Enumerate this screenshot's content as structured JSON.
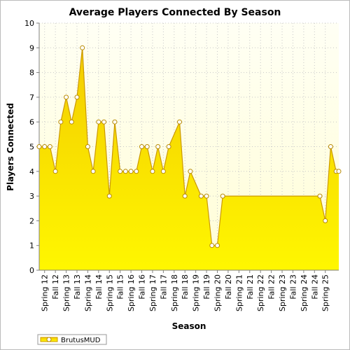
{
  "chart_data": {
    "type": "area",
    "title": "Average Players Connected By Season",
    "xlabel": "Season",
    "ylabel": "Players Connected",
    "ylim": [
      0,
      10
    ],
    "yticks": [
      0,
      1,
      2,
      3,
      4,
      5,
      6,
      7,
      8,
      9,
      10
    ],
    "grid": true,
    "legend_position": "bottom-left",
    "x_tick_labels": [
      "Spring 12",
      "Fall 12",
      "Spring 13",
      "Fall 13",
      "Spring 14",
      "Fall 14",
      "Spring 15",
      "Fall 15",
      "Spring 16",
      "Fall 16",
      "Spring 17",
      "Fall 17",
      "Spring 18",
      "Fall 18",
      "Spring 19",
      "Fall 19",
      "Spring 20",
      "Fall 20",
      "Spring 21",
      "Fall 21",
      "Spring 22",
      "Fall 22",
      "Spring 23",
      "Fall 23",
      "Spring 24",
      "Fall 24",
      "Spring 25"
    ],
    "x_index_max": 55.5,
    "series": [
      {
        "name": "BrutusMUD",
        "points": [
          {
            "x": 0,
            "y": 5,
            "marker": true
          },
          {
            "x": 1,
            "y": 5,
            "marker": true
          },
          {
            "x": 2,
            "y": 5,
            "marker": true
          },
          {
            "x": 3,
            "y": 4,
            "marker": true
          },
          {
            "x": 4,
            "y": 6,
            "marker": true
          },
          {
            "x": 5,
            "y": 7,
            "marker": true
          },
          {
            "x": 6,
            "y": 6,
            "marker": true
          },
          {
            "x": 7,
            "y": 7,
            "marker": true
          },
          {
            "x": 8,
            "y": 9,
            "marker": true
          },
          {
            "x": 9,
            "y": 5,
            "marker": true
          },
          {
            "x": 10,
            "y": 4,
            "marker": true
          },
          {
            "x": 11,
            "y": 6,
            "marker": true
          },
          {
            "x": 12,
            "y": 6,
            "marker": true
          },
          {
            "x": 13,
            "y": 3,
            "marker": true
          },
          {
            "x": 14,
            "y": 6,
            "marker": true
          },
          {
            "x": 15,
            "y": 4,
            "marker": true
          },
          {
            "x": 16,
            "y": 4,
            "marker": true
          },
          {
            "x": 17,
            "y": 4,
            "marker": true
          },
          {
            "x": 18,
            "y": 4,
            "marker": true
          },
          {
            "x": 19,
            "y": 5,
            "marker": true
          },
          {
            "x": 20,
            "y": 5,
            "marker": true
          },
          {
            "x": 21,
            "y": 4,
            "marker": true
          },
          {
            "x": 22,
            "y": 5,
            "marker": true
          },
          {
            "x": 23,
            "y": 4,
            "marker": true
          },
          {
            "x": 24,
            "y": 5,
            "marker": true
          },
          {
            "x": 26,
            "y": 6,
            "marker": true
          },
          {
            "x": 27,
            "y": 3,
            "marker": true
          },
          {
            "x": 28,
            "y": 4,
            "marker": true
          },
          {
            "x": 30,
            "y": 3,
            "marker": true
          },
          {
            "x": 31,
            "y": 3,
            "marker": true
          },
          {
            "x": 32,
            "y": 1,
            "marker": true
          },
          {
            "x": 33,
            "y": 1,
            "marker": true
          },
          {
            "x": 34,
            "y": 3,
            "marker": true
          },
          {
            "x": 52,
            "y": 3,
            "marker": true
          },
          {
            "x": 53,
            "y": 2,
            "marker": true
          },
          {
            "x": 54,
            "y": 5,
            "marker": true
          },
          {
            "x": 55,
            "y": 4,
            "marker": true
          },
          {
            "x": 55.5,
            "y": 4,
            "marker": true
          }
        ]
      }
    ]
  },
  "colors": {
    "background": "#ffffff",
    "plot_top": "#fffff4",
    "plot_bottom": "#fffed6",
    "area_top": "#f3cc00",
    "area_bottom": "#fff700",
    "line": "#cc9900",
    "marker_fill": "#ffffff",
    "marker_stroke": "#b88a00",
    "grid": "#c8c8c8",
    "axis": "#808080"
  }
}
